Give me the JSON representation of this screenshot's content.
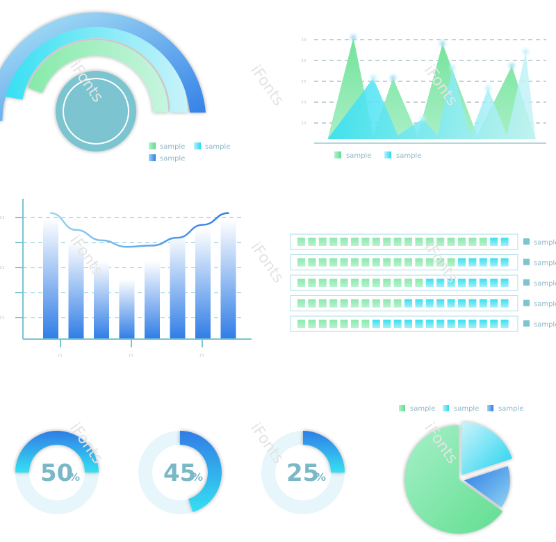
{
  "watermark": "iFonts",
  "colors": {
    "green": "#7fe8a6",
    "cyan": "#3fe0f0",
    "blue": "#2f7de6",
    "teal": "#7cc4d0",
    "light_ring": "#e6f6fb",
    "grid": "#7aa6b2",
    "axis": "#7cc4d0"
  },
  "chart_data": [
    {
      "id": "arc-gauge",
      "type": "radial-bar",
      "series": [
        {
          "label": "sample",
          "color": "#7fe8a6"
        },
        {
          "label": "sample",
          "color": "#3fe0f0"
        },
        {
          "label": "sample",
          "color": "#2f7de6"
        }
      ],
      "arcs": [
        {
          "series": 0,
          "start_deg": 200,
          "end_deg": 270
        },
        {
          "series": 1,
          "start_deg": 190,
          "end_deg": 270
        },
        {
          "series": 2,
          "start_deg": 175,
          "end_deg": 270
        }
      ]
    },
    {
      "id": "peak-area",
      "type": "area",
      "y_ticks": [
        "2.5",
        "2.5",
        "2.5",
        "2.5",
        "2.5"
      ],
      "series": [
        {
          "label": "sample",
          "color": "#7fe8a6",
          "peaks": [
            {
              "x": 0.1,
              "y": 5.0
            },
            {
              "x": 0.3,
              "y": 3.0
            },
            {
              "x": 0.55,
              "y": 4.7
            },
            {
              "x": 0.9,
              "y": 3.6
            }
          ]
        },
        {
          "label": "sample",
          "color": "#3fe0f0",
          "peaks": [
            {
              "x": 0.2,
              "y": 3.0
            },
            {
              "x": 0.45,
              "y": 1.0
            },
            {
              "x": 0.6,
              "y": 3.5
            },
            {
              "x": 0.78,
              "y": 2.5
            },
            {
              "x": 0.97,
              "y": 4.3
            }
          ]
        }
      ]
    },
    {
      "id": "bar-line",
      "type": "bar",
      "y_ticks": [
        "2.5",
        "",
        "2.5",
        "",
        "2.5"
      ],
      "x_ticks": [
        "2.5",
        "2.5",
        "2.5"
      ],
      "bars": [
        93,
        75,
        60,
        46,
        60,
        81,
        85,
        92
      ],
      "line": [
        97,
        84,
        76,
        71,
        72,
        78,
        88,
        97
      ],
      "ylim": [
        0,
        100
      ]
    },
    {
      "id": "cell-bars",
      "type": "bar",
      "total_cells": 20,
      "rows": [
        {
          "label": "sample",
          "value": 18
        },
        {
          "label": "sample",
          "value": 15
        },
        {
          "label": "sample",
          "value": 12
        },
        {
          "label": "sample",
          "value": 10
        },
        {
          "label": "sample",
          "value": 7
        }
      ]
    },
    {
      "id": "donut-50",
      "type": "pie",
      "value": 50,
      "label": "50",
      "suffix": "%"
    },
    {
      "id": "donut-45",
      "type": "pie",
      "value": 45,
      "label": "45",
      "suffix": "%"
    },
    {
      "id": "donut-25",
      "type": "pie",
      "value": 25,
      "label": "25",
      "suffix": "%"
    },
    {
      "id": "exploded-pie",
      "type": "pie",
      "slices": [
        {
          "label": "sample",
          "value": 65,
          "color": "#7fe8a6"
        },
        {
          "label": "sample",
          "value": 20,
          "color": "#3fe0f0"
        },
        {
          "label": "sample",
          "value": 15,
          "color": "#2f7de6"
        }
      ]
    }
  ]
}
